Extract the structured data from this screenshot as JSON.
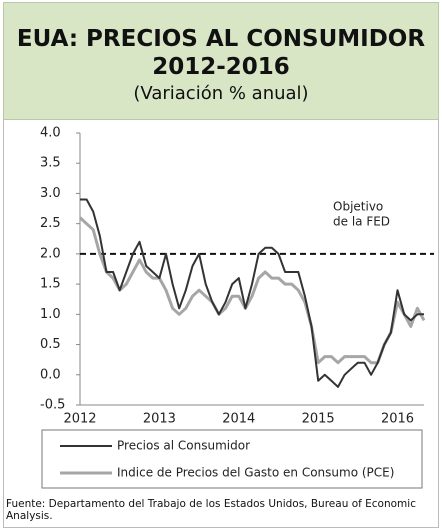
{
  "chart_data": {
    "type": "line",
    "title": "EUA: PRECIOS AL CONSUMIDOR 2012-2016",
    "subtitle": "(Variación % anual)",
    "categories": [
      "2012",
      null,
      null,
      null,
      null,
      null,
      null,
      null,
      null,
      null,
      null,
      null,
      "2013",
      null,
      null,
      null,
      null,
      null,
      null,
      null,
      null,
      null,
      null,
      null,
      "2014",
      null,
      null,
      null,
      null,
      null,
      null,
      null,
      null,
      null,
      null,
      null,
      "2015",
      null,
      null,
      null,
      null,
      null,
      null,
      null,
      null,
      null,
      null,
      null,
      "2016",
      null,
      null,
      null,
      null
    ],
    "series": [
      {
        "name": "Precios al Consumidor",
        "color": "#333333",
        "values": [
          2.9,
          2.9,
          2.7,
          2.3,
          1.7,
          1.7,
          1.4,
          1.7,
          2.0,
          2.2,
          1.8,
          1.7,
          1.6,
          2.0,
          1.5,
          1.1,
          1.4,
          1.8,
          2.0,
          1.5,
          1.2,
          1.0,
          1.2,
          1.5,
          1.6,
          1.1,
          1.5,
          2.0,
          2.1,
          2.1,
          2.0,
          1.7,
          1.7,
          1.7,
          1.3,
          0.8,
          -0.1,
          0.0,
          -0.1,
          -0.2,
          0.0,
          0.1,
          0.2,
          0.2,
          0.0,
          0.2,
          0.5,
          0.7,
          1.4,
          1.0,
          0.9,
          1.0,
          1.0
        ]
      },
      {
        "name": "Indice de Precios del Gasto en Consumo (PCE)",
        "color": "#a6a6a6",
        "values": [
          2.6,
          2.5,
          2.4,
          2.0,
          1.7,
          1.6,
          1.4,
          1.5,
          1.7,
          1.9,
          1.7,
          1.6,
          1.6,
          1.4,
          1.1,
          1.0,
          1.1,
          1.3,
          1.4,
          1.3,
          1.2,
          1.0,
          1.1,
          1.3,
          1.3,
          1.1,
          1.3,
          1.6,
          1.7,
          1.6,
          1.6,
          1.5,
          1.5,
          1.4,
          1.2,
          0.8,
          0.2,
          0.3,
          0.3,
          0.2,
          0.3,
          0.3,
          0.3,
          0.3,
          0.2,
          0.2,
          0.5,
          0.7,
          1.2,
          1.0,
          0.8,
          1.1,
          0.9
        ]
      }
    ],
    "target": 2.0,
    "annotation": [
      "Objetivo",
      "de la FED"
    ],
    "ylim": [
      -0.5,
      4.0
    ],
    "yticks": [
      {
        "value": -0.5,
        "label": "-0.5"
      },
      {
        "value": 0,
        "label": "0.0"
      },
      {
        "value": 0.5,
        "label": "0.5"
      },
      {
        "value": 1,
        "label": "1.0"
      },
      {
        "value": 1.5,
        "label": "1.5"
      },
      {
        "value": 2,
        "label": "2.0"
      },
      {
        "value": 2.5,
        "label": "2.5"
      },
      {
        "value": 3,
        "label": "3.0"
      },
      {
        "value": 3.5,
        "label": "3.5"
      },
      {
        "value": 4,
        "label": "4.0"
      }
    ],
    "grid": false,
    "source": "Fuente:  Departamento del Trabajo de los Estados Unidos, Bureau of Economic Analysis."
  }
}
